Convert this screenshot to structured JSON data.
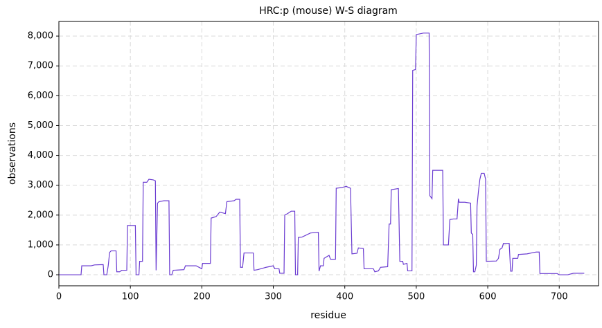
{
  "chart_data": {
    "type": "line",
    "title": "HRC:p (mouse) W-S diagram",
    "xlabel": "residue",
    "ylabel": "observations",
    "color": "#6a3bd1",
    "grid": true,
    "xlim": [
      0,
      755
    ],
    "ylim": [
      -370,
      8490
    ],
    "xticks": [
      0,
      100,
      200,
      300,
      400,
      500,
      600,
      700
    ],
    "yticks": [
      0,
      {
        "value": 1000,
        "label": "1,000"
      },
      {
        "value": 2000,
        "label": "2,000"
      },
      {
        "value": 3000,
        "label": "3,000"
      },
      {
        "value": 4000,
        "label": "4,000"
      },
      {
        "value": 5000,
        "label": "5,000"
      },
      {
        "value": 6000,
        "label": "6,000"
      },
      {
        "value": 7000,
        "label": "7,000"
      },
      {
        "value": 8000,
        "label": "8,000"
      }
    ],
    "x": [
      0,
      31,
      32,
      45,
      50,
      62,
      63,
      67,
      69,
      71,
      73,
      80,
      81,
      85,
      88,
      95,
      96,
      107,
      108,
      112,
      113,
      117,
      118,
      123,
      126,
      132,
      135,
      136,
      138,
      140,
      147,
      154,
      155,
      158,
      160,
      175,
      177,
      192,
      200,
      201,
      212,
      213,
      220,
      225,
      233,
      235,
      245,
      248,
      253,
      254,
      257,
      259,
      272,
      273,
      278,
      290,
      300,
      302,
      308,
      309,
      315,
      316,
      320,
      325,
      330,
      331,
      334,
      335,
      340,
      352,
      363,
      364,
      366,
      370,
      371,
      378,
      380,
      387,
      388,
      395,
      402,
      408,
      410,
      417,
      419,
      426,
      427,
      440,
      442,
      447,
      450,
      460,
      462,
      464,
      465,
      475,
      477,
      481,
      482,
      487,
      488,
      494,
      495,
      499,
      500,
      510,
      518,
      519,
      522,
      523,
      537,
      538,
      545,
      547,
      552,
      557,
      559,
      560,
      568,
      576,
      577,
      579,
      580,
      582,
      584,
      585,
      587,
      589,
      591,
      595,
      597,
      598,
      612,
      615,
      617,
      620,
      622,
      630,
      632,
      634,
      635,
      642,
      643,
      655,
      665,
      668,
      672,
      673,
      697,
      700,
      712,
      715,
      720,
      735
    ],
    "values": [
      0,
      0,
      300,
      300,
      330,
      340,
      0,
      0,
      300,
      750,
      800,
      800,
      100,
      100,
      150,
      150,
      1650,
      1650,
      0,
      0,
      450,
      450,
      3100,
      3100,
      3200,
      3180,
      3150,
      150,
      2400,
      2450,
      2480,
      2480,
      0,
      0,
      150,
      170,
      300,
      300,
      200,
      380,
      380,
      1900,
      1950,
      2100,
      2050,
      2450,
      2480,
      2530,
      2530,
      250,
      250,
      730,
      730,
      150,
      170,
      250,
      300,
      200,
      200,
      50,
      50,
      2000,
      2050,
      2130,
      2130,
      0,
      0,
      1250,
      1260,
      1400,
      1420,
      120,
      300,
      300,
      550,
      650,
      520,
      520,
      2900,
      2920,
      2960,
      2900,
      700,
      720,
      900,
      880,
      200,
      200,
      100,
      130,
      250,
      270,
      1700,
      1700,
      2850,
      2890,
      450,
      450,
      350,
      380,
      130,
      130,
      6850,
      6880,
      8050,
      8100,
      8100,
      2650,
      2550,
      3500,
      3500,
      1000,
      1000,
      1850,
      1870,
      1870,
      2550,
      2430,
      2430,
      2400,
      1400,
      1350,
      100,
      100,
      320,
      2300,
      2800,
      3200,
      3400,
      3400,
      3200,
      450,
      460,
      550,
      850,
      900,
      1050,
      1050,
      120,
      120,
      550,
      550,
      680,
      700,
      750,
      760,
      760,
      40,
      40,
      0,
      0,
      20,
      50,
      50
    ]
  }
}
